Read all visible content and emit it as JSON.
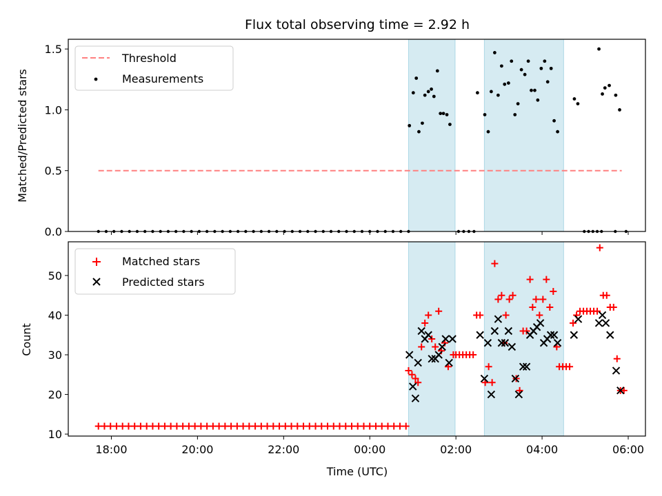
{
  "chart_data": {
    "title": "Flux total observing time = 2.92 h",
    "xlabel": "Time (UTC)",
    "x_unit": "hours relative to 00:00 UTC",
    "xlim": [
      -7.0,
      6.4
    ],
    "x_ticks": [
      {
        "value": -6,
        "label": "18:00"
      },
      {
        "value": -4,
        "label": "20:00"
      },
      {
        "value": -2,
        "label": "22:00"
      },
      {
        "value": 0,
        "label": "00:00"
      },
      {
        "value": 2,
        "label": "02:00"
      },
      {
        "value": 4,
        "label": "04:00"
      },
      {
        "value": 6,
        "label": "06:00"
      }
    ],
    "shaded_intervals": [
      [
        0.9,
        1.98
      ],
      [
        2.66,
        4.5
      ]
    ],
    "shade_color": "#add8e6",
    "top_panel": {
      "type": "scatter",
      "ylabel": "Matched/Predicted stars",
      "ylim": [
        0,
        1.58
      ],
      "y_ticks": [
        {
          "value": 0,
          "label": "0.0"
        },
        {
          "value": 0.5,
          "label": "0.5"
        },
        {
          "value": 1.0,
          "label": "1.0"
        },
        {
          "value": 1.5,
          "label": "1.5"
        }
      ],
      "legend": [
        "Threshold",
        "Measurements"
      ],
      "threshold": {
        "name": "Threshold",
        "value": 0.5,
        "x_range": [
          -6.3,
          5.85
        ],
        "color": "#ff7f7f"
      },
      "measurements": {
        "name": "Measurements",
        "color": "#000000",
        "zero_x_ranges": [
          [
            -6.3,
            0.9,
            0.18
          ],
          [
            2.06,
            2.42,
            0.12
          ],
          [
            4.98,
            5.4,
            0.1
          ]
        ],
        "zero_x_extra": [
          5.7,
          5.95
        ],
        "points": [
          [
            0.92,
            0.87
          ],
          [
            1.01,
            1.14
          ],
          [
            1.08,
            1.26
          ],
          [
            1.14,
            0.82
          ],
          [
            1.22,
            0.89
          ],
          [
            1.28,
            1.12
          ],
          [
            1.36,
            1.15
          ],
          [
            1.43,
            1.17
          ],
          [
            1.49,
            1.11
          ],
          [
            1.57,
            1.32
          ],
          [
            1.64,
            0.97
          ],
          [
            1.71,
            0.97
          ],
          [
            1.79,
            0.96
          ],
          [
            1.86,
            0.88
          ],
          [
            2.5,
            1.14
          ],
          [
            2.67,
            0.96
          ],
          [
            2.75,
            0.82
          ],
          [
            2.82,
            1.15
          ],
          [
            2.9,
            1.47
          ],
          [
            2.98,
            1.12
          ],
          [
            3.06,
            1.36
          ],
          [
            3.13,
            1.21
          ],
          [
            3.22,
            1.22
          ],
          [
            3.29,
            1.4
          ],
          [
            3.37,
            0.96
          ],
          [
            3.44,
            1.05
          ],
          [
            3.52,
            1.33
          ],
          [
            3.6,
            1.29
          ],
          [
            3.68,
            1.4
          ],
          [
            3.75,
            1.16
          ],
          [
            3.83,
            1.16
          ],
          [
            3.9,
            1.08
          ],
          [
            3.98,
            1.34
          ],
          [
            4.06,
            1.4
          ],
          [
            4.13,
            1.23
          ],
          [
            4.21,
            1.34
          ],
          [
            4.28,
            0.91
          ],
          [
            4.36,
            0.82
          ],
          [
            4.75,
            1.09
          ],
          [
            4.83,
            1.05
          ],
          [
            5.32,
            1.5
          ],
          [
            5.4,
            1.13
          ],
          [
            5.46,
            1.18
          ],
          [
            5.56,
            1.2
          ],
          [
            5.71,
            1.12
          ],
          [
            5.8,
            1.0
          ]
        ]
      }
    },
    "bottom_panel": {
      "type": "scatter",
      "ylabel": "Count",
      "ylim": [
        9.5,
        58.5
      ],
      "y_ticks": [
        {
          "value": 10,
          "label": "10"
        },
        {
          "value": 20,
          "label": "20"
        },
        {
          "value": 30,
          "label": "30"
        },
        {
          "value": 40,
          "label": "40"
        },
        {
          "value": 50,
          "label": "50"
        }
      ],
      "legend": [
        "Matched stars",
        "Predicted stars"
      ],
      "matched": {
        "name": "Matched stars",
        "color": "#ff0000",
        "baseline_value": 12,
        "baseline_x_range": [
          -6.3,
          0.88,
          0.14
        ],
        "points": [
          [
            0.9,
            26
          ],
          [
            0.98,
            25
          ],
          [
            1.06,
            24
          ],
          [
            1.12,
            23
          ],
          [
            1.2,
            32
          ],
          [
            1.28,
            38
          ],
          [
            1.36,
            40
          ],
          [
            1.44,
            34
          ],
          [
            1.52,
            32
          ],
          [
            1.6,
            41
          ],
          [
            1.66,
            31
          ],
          [
            1.74,
            33
          ],
          [
            1.82,
            27
          ],
          [
            1.94,
            30
          ],
          [
            2.0,
            30
          ],
          [
            2.08,
            30
          ],
          [
            2.16,
            30
          ],
          [
            2.24,
            30
          ],
          [
            2.32,
            30
          ],
          [
            2.4,
            30
          ],
          [
            2.48,
            40
          ],
          [
            2.56,
            40
          ],
          [
            2.68,
            23
          ],
          [
            2.76,
            27
          ],
          [
            2.84,
            23
          ],
          [
            2.9,
            53
          ],
          [
            2.98,
            44
          ],
          [
            3.06,
            45
          ],
          [
            3.12,
            33
          ],
          [
            3.16,
            40
          ],
          [
            3.24,
            44
          ],
          [
            3.32,
            45
          ],
          [
            3.4,
            24
          ],
          [
            3.48,
            21
          ],
          [
            3.56,
            36
          ],
          [
            3.64,
            36
          ],
          [
            3.72,
            49
          ],
          [
            3.78,
            42
          ],
          [
            3.86,
            44
          ],
          [
            3.94,
            40
          ],
          [
            4.02,
            44
          ],
          [
            4.1,
            49
          ],
          [
            4.18,
            42
          ],
          [
            4.26,
            46
          ],
          [
            4.34,
            32
          ],
          [
            4.4,
            27
          ],
          [
            4.48,
            27
          ],
          [
            4.56,
            27
          ],
          [
            4.64,
            27
          ],
          [
            4.72,
            38
          ],
          [
            4.8,
            40
          ],
          [
            4.88,
            41
          ],
          [
            4.96,
            41
          ],
          [
            5.04,
            41
          ],
          [
            5.12,
            41
          ],
          [
            5.2,
            41
          ],
          [
            5.28,
            41
          ],
          [
            5.34,
            57
          ],
          [
            5.42,
            45
          ],
          [
            5.5,
            45
          ],
          [
            5.58,
            42
          ],
          [
            5.66,
            42
          ],
          [
            5.74,
            29
          ],
          [
            5.82,
            21
          ],
          [
            5.9,
            21
          ]
        ]
      },
      "predicted": {
        "name": "Predicted stars",
        "color": "#000000",
        "points": [
          [
            0.92,
            30
          ],
          [
            1.0,
            22
          ],
          [
            1.06,
            19
          ],
          [
            1.12,
            28
          ],
          [
            1.2,
            36
          ],
          [
            1.28,
            34
          ],
          [
            1.36,
            35
          ],
          [
            1.44,
            29
          ],
          [
            1.52,
            29
          ],
          [
            1.6,
            30
          ],
          [
            1.68,
            32
          ],
          [
            1.76,
            34
          ],
          [
            1.84,
            28
          ],
          [
            1.92,
            34
          ],
          [
            2.56,
            35
          ],
          [
            2.66,
            24
          ],
          [
            2.74,
            33
          ],
          [
            2.82,
            20
          ],
          [
            2.9,
            36
          ],
          [
            2.98,
            39
          ],
          [
            3.06,
            33
          ],
          [
            3.14,
            33
          ],
          [
            3.22,
            36
          ],
          [
            3.3,
            32
          ],
          [
            3.38,
            24
          ],
          [
            3.46,
            20
          ],
          [
            3.56,
            27
          ],
          [
            3.64,
            27
          ],
          [
            3.72,
            35
          ],
          [
            3.8,
            36
          ],
          [
            3.88,
            37
          ],
          [
            3.96,
            38
          ],
          [
            4.04,
            33
          ],
          [
            4.12,
            34
          ],
          [
            4.2,
            35
          ],
          [
            4.28,
            35
          ],
          [
            4.36,
            33
          ],
          [
            4.74,
            35
          ],
          [
            4.84,
            39
          ],
          [
            5.32,
            38
          ],
          [
            5.4,
            40
          ],
          [
            5.48,
            38
          ],
          [
            5.58,
            35
          ],
          [
            5.72,
            26
          ],
          [
            5.82,
            21
          ]
        ]
      }
    }
  }
}
